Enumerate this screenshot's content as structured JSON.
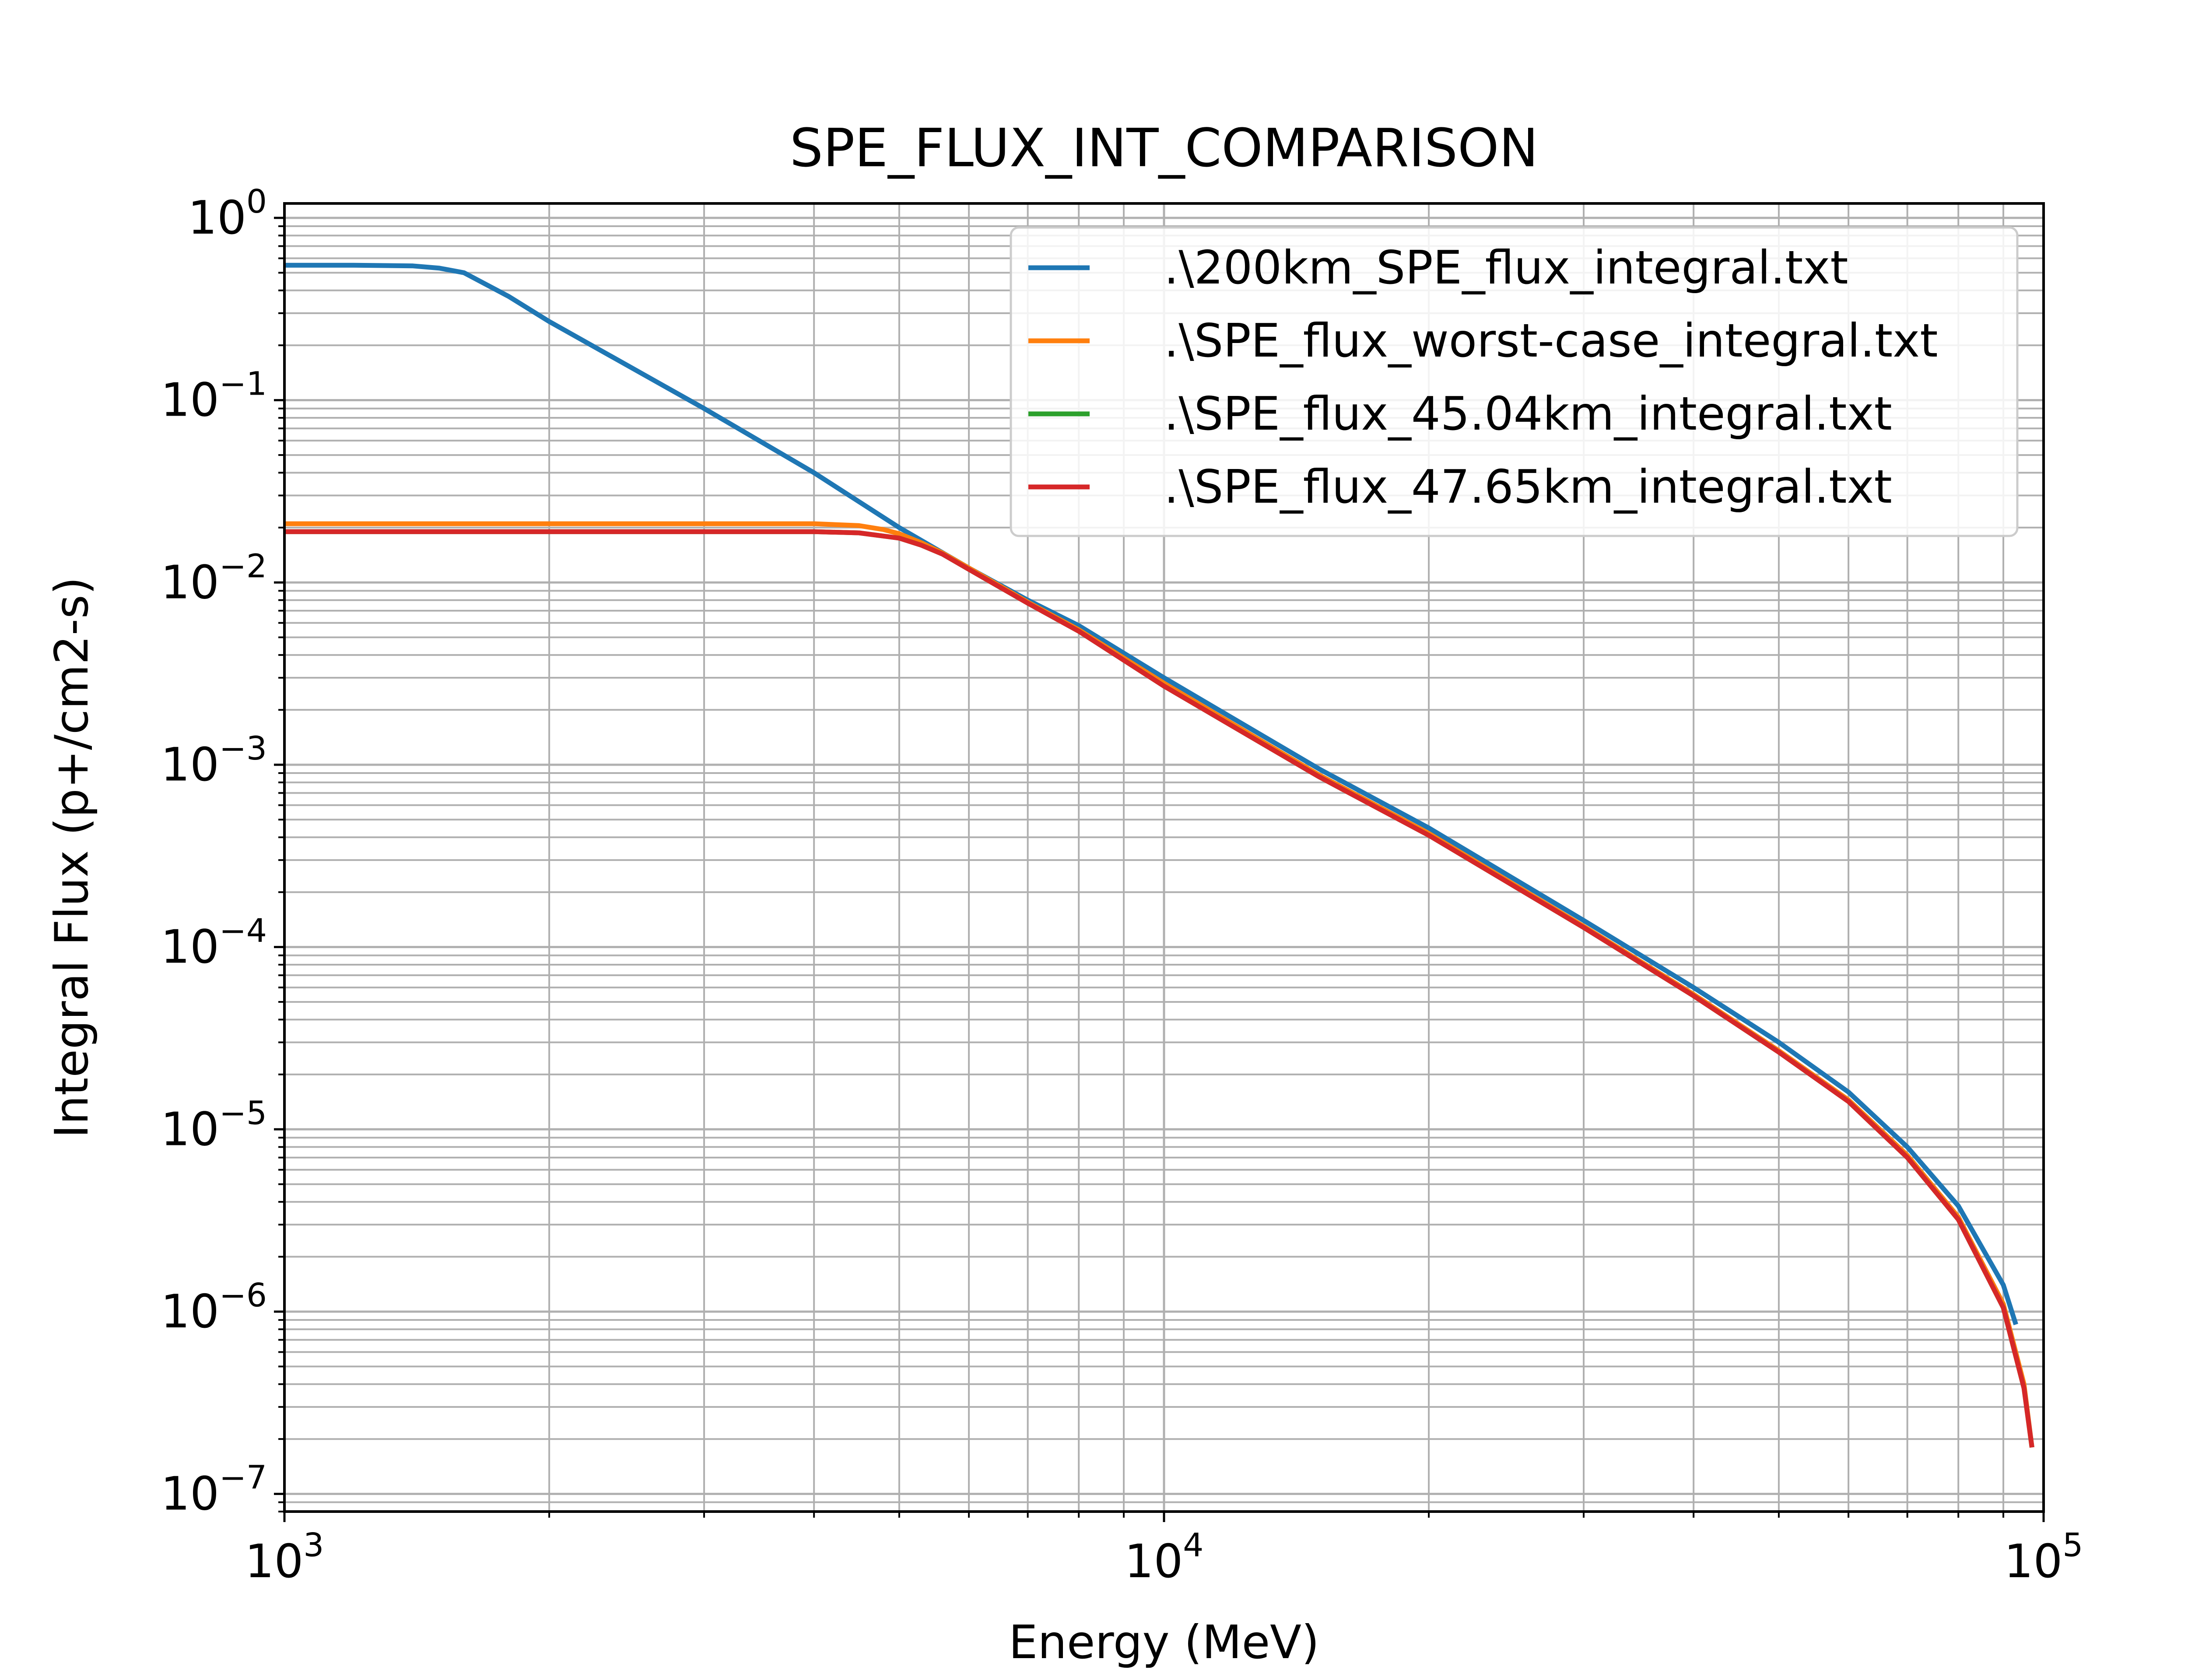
{
  "chart_data": {
    "type": "line",
    "title": "SPE_FLUX_INT_COMPARISON",
    "xlabel": "Energy (MeV)",
    "ylabel": "Integral Flux (p+/cm2-s)",
    "xscale": "log",
    "yscale": "log",
    "xlim": [
      1000,
      100000
    ],
    "ylim": [
      8e-08,
      1.2
    ],
    "grid": true,
    "minor_grid": true,
    "legend_position": "top-right",
    "x_ticks": [
      {
        "value": 1000,
        "base": "10",
        "exp": "3"
      },
      {
        "value": 10000,
        "base": "10",
        "exp": "4"
      },
      {
        "value": 100000,
        "base": "10",
        "exp": "5"
      }
    ],
    "y_ticks": [
      {
        "value": 1,
        "base": "10",
        "exp": "0"
      },
      {
        "value": 0.1,
        "base": "10",
        "exp": "−1"
      },
      {
        "value": 0.01,
        "base": "10",
        "exp": "−2"
      },
      {
        "value": 0.001,
        "base": "10",
        "exp": "−3"
      },
      {
        "value": 0.0001,
        "base": "10",
        "exp": "−4"
      },
      {
        "value": 1e-05,
        "base": "10",
        "exp": "−5"
      },
      {
        "value": 1e-06,
        "base": "10",
        "exp": "−6"
      },
      {
        "value": 1e-07,
        "base": "10",
        "exp": "−7"
      }
    ],
    "series": [
      {
        "name": ".\\200km_SPE_flux_integral.txt",
        "color": "#1f77b4",
        "x": [
          1000,
          1200,
          1400,
          1500,
          1600,
          1800,
          2000,
          3000,
          4000,
          5000,
          6000,
          7000,
          8000,
          10000,
          15000,
          20000,
          30000,
          40000,
          50000,
          60000,
          70000,
          80000,
          90000,
          93000
        ],
        "y": [
          0.55,
          0.55,
          0.545,
          0.53,
          0.5,
          0.37,
          0.27,
          0.09,
          0.04,
          0.02,
          0.012,
          0.008,
          0.0058,
          0.003,
          0.00095,
          0.00045,
          0.00014,
          6e-05,
          3e-05,
          1.6e-05,
          8e-06,
          3.8e-06,
          1.4e-06,
          8.5e-07
        ]
      },
      {
        "name": ".\\SPE_flux_worst-case_integral.txt",
        "color": "#ff7f0e",
        "x": [
          1000,
          2000,
          3000,
          4000,
          4500,
          4800,
          5000,
          5300,
          5600,
          6000,
          7000,
          8000,
          10000,
          15000,
          20000,
          30000,
          40000,
          50000,
          60000,
          70000,
          80000,
          90000,
          95000,
          97000
        ],
        "y": [
          0.021,
          0.021,
          0.021,
          0.021,
          0.0205,
          0.0195,
          0.0185,
          0.0165,
          0.0145,
          0.012,
          0.0078,
          0.0055,
          0.0028,
          0.00088,
          0.00042,
          0.00013,
          5.5e-05,
          2.7e-05,
          1.45e-05,
          7.2e-06,
          3.3e-06,
          1.1e-06,
          4e-07,
          1.8e-07
        ]
      },
      {
        "name": ".\\SPE_flux_45.04km_integral.txt",
        "color": "#2ca02c",
        "x": [
          1000,
          2000,
          3000,
          4000,
          4500,
          5000,
          5300,
          5600,
          6000,
          7000,
          8000,
          10000,
          15000,
          20000,
          30000,
          40000,
          50000,
          60000,
          70000,
          80000,
          90000,
          95000,
          97000
        ],
        "y": [
          0.019,
          0.019,
          0.019,
          0.019,
          0.0187,
          0.0175,
          0.016,
          0.0143,
          0.0118,
          0.0077,
          0.0054,
          0.0027,
          0.00086,
          0.00041,
          0.000128,
          5.4e-05,
          2.65e-05,
          1.42e-05,
          7e-06,
          3.2e-06,
          1.05e-06,
          3.8e-07,
          1.8e-07
        ]
      },
      {
        "name": ".\\SPE_flux_47.65km_integral.txt",
        "color": "#d62728",
        "x": [
          1000,
          2000,
          3000,
          4000,
          4500,
          5000,
          5300,
          5600,
          6000,
          7000,
          8000,
          10000,
          15000,
          20000,
          30000,
          40000,
          50000,
          60000,
          70000,
          80000,
          90000,
          95000,
          97000
        ],
        "y": [
          0.019,
          0.019,
          0.019,
          0.019,
          0.0187,
          0.0175,
          0.016,
          0.0143,
          0.0118,
          0.0077,
          0.0054,
          0.0027,
          0.00086,
          0.00041,
          0.000128,
          5.4e-05,
          2.65e-05,
          1.42e-05,
          7e-06,
          3.2e-06,
          1.05e-06,
          3.8e-07,
          1.8e-07
        ]
      }
    ]
  }
}
